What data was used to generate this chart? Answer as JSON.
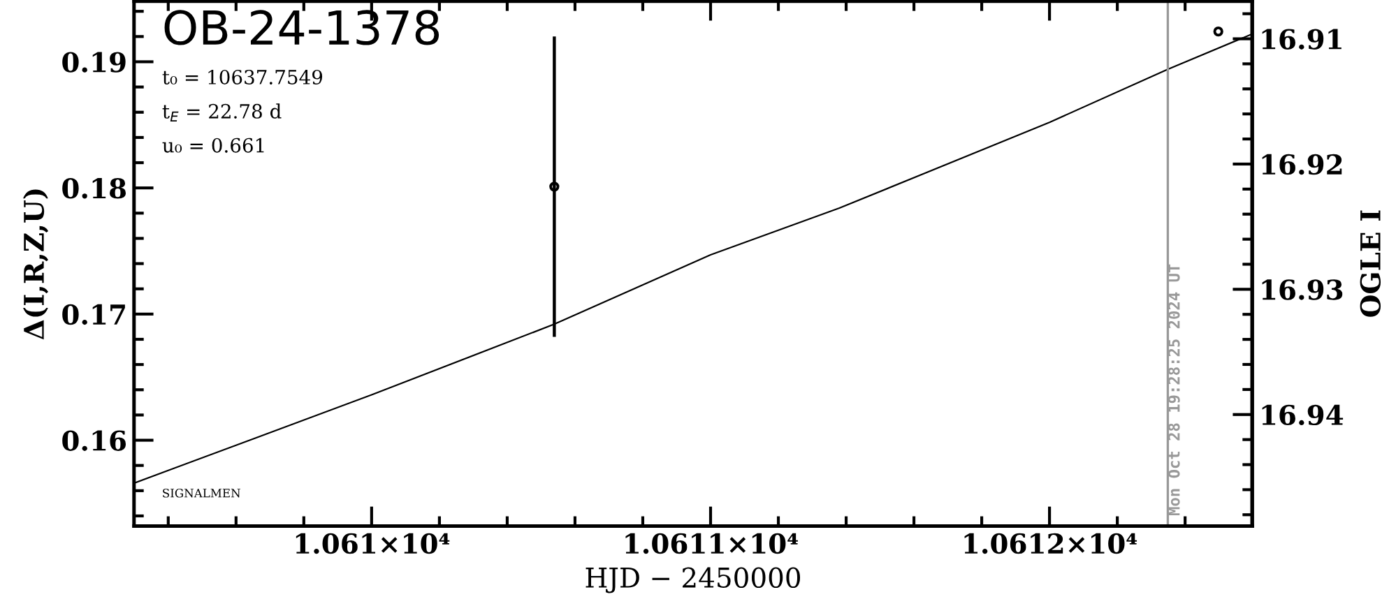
{
  "chart_data": {
    "type": "scatter",
    "title": "OB-24-1378",
    "xlabel": "HJD − 2450000",
    "ylabel": "Δ(I,R,Z,U)",
    "y2label": "OGLE I",
    "annotations": [
      "t₀ = 10637.7549",
      "t$_{E}$ = 22.78 d",
      "u₀ = 0.661",
      "SIGNALMEN",
      {
        "text": "Mon Oct 28 19:28:25 2024 UT",
        "x": 10612.349,
        "y": 0.154
      }
    ],
    "series": [
      {
        "type": "line",
        "color": "#000000",
        "marker": "none",
        "x": [
          10609.299,
          10609.65,
          10610,
          10610.539,
          10611,
          10611.38,
          10612,
          10612.349,
          10612.598
        ],
        "values": [
          0.1566,
          0.1601,
          0.1636,
          0.1692,
          0.1747,
          0.1784,
          0.1852,
          0.1894,
          0.1922
        ]
      },
      {
        "type": "scatter",
        "color": "#000000",
        "marker": "circle",
        "x": [
          10610.539,
          10612.498
        ],
        "values": [
          0.1801,
          0.1924
        ],
        "errors": [
          [
            0.1682,
            0.192
          ],
          null
        ]
      }
    ],
    "xlim": [
      10609.299,
      10612.598
    ],
    "xticks": [
      {
        "value": 10609.4,
        "label": null
      },
      {
        "value": 10609.6,
        "label": null
      },
      {
        "value": 10609.8,
        "label": null
      },
      {
        "value": 10610,
        "label": "1.061×10⁴"
      },
      {
        "value": 10610.2,
        "label": null
      },
      {
        "value": 10610.4,
        "label": null
      },
      {
        "value": 10610.6,
        "label": null
      },
      {
        "value": 10610.8,
        "label": null
      },
      {
        "value": 10611,
        "label": "1.0611×10⁴"
      },
      {
        "value": 10611.2,
        "label": null
      },
      {
        "value": 10611.4,
        "label": null
      },
      {
        "value": 10611.6,
        "label": null
      },
      {
        "value": 10611.8,
        "label": null
      },
      {
        "value": 10612,
        "label": "1.0612×10⁴"
      },
      {
        "value": 10612.2,
        "label": null
      },
      {
        "value": 10612.4,
        "label": null
      }
    ],
    "ylim": [
      0.1532,
      0.1948
    ],
    "yticks": [
      {
        "value": 0.154,
        "label": null
      },
      {
        "value": 0.156,
        "label": null
      },
      {
        "value": 0.158,
        "label": null
      },
      0.16,
      {
        "value": 0.162,
        "label": null
      },
      {
        "value": 0.164,
        "label": null
      },
      {
        "value": 0.166,
        "label": null
      },
      {
        "value": 0.168,
        "label": null
      },
      0.17,
      {
        "value": 0.172,
        "label": null
      },
      {
        "value": 0.174,
        "label": null
      },
      {
        "value": 0.176,
        "label": null
      },
      {
        "value": 0.178,
        "label": null
      },
      0.18,
      {
        "value": 0.182,
        "label": null
      },
      {
        "value": 0.184,
        "label": null
      },
      {
        "value": 0.186,
        "label": null
      },
      {
        "value": 0.188,
        "label": null
      },
      0.19,
      {
        "value": 0.192,
        "label": null
      },
      {
        "value": 0.194,
        "label": null
      }
    ],
    "y2lim": [
      16.9489,
      16.907
    ],
    "y2ticks": [
      {
        "value": 16.908,
        "label": null
      },
      16.91,
      {
        "value": 16.912,
        "label": null
      },
      {
        "value": 16.914,
        "label": null
      },
      {
        "value": 16.916,
        "label": null
      },
      {
        "value": 16.918,
        "label": null
      },
      16.92,
      {
        "value": 16.922,
        "label": null
      },
      {
        "value": 16.924,
        "label": null
      },
      {
        "value": 16.926,
        "label": null
      },
      {
        "value": 16.928,
        "label": null
      },
      16.93,
      {
        "value": 16.932,
        "label": null
      },
      {
        "value": 16.934,
        "label": null
      },
      {
        "value": 16.936,
        "label": null
      },
      {
        "value": 16.938,
        "label": null
      },
      16.94,
      {
        "value": 16.942,
        "label": null
      },
      {
        "value": 16.944,
        "label": null
      },
      {
        "value": 16.946,
        "label": null
      },
      {
        "value": 16.948,
        "label": null
      }
    ],
    "ref_lines": [
      {
        "axis": "x",
        "value": 10612.349,
        "color": "#999999"
      }
    ],
    "grid": false,
    "legend": false
  }
}
